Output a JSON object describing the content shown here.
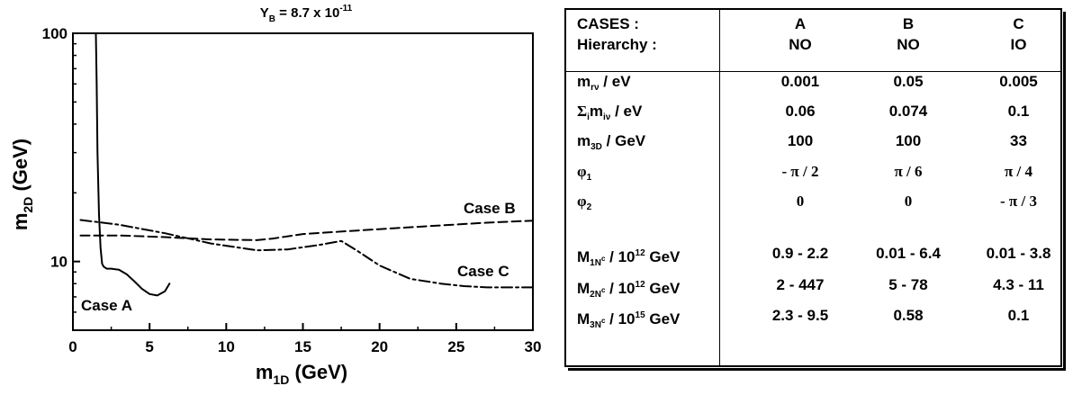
{
  "chart_data": {
    "type": "line",
    "title": "Y_B = 8.7 x 10^-11",
    "title_parts": {
      "main": "Y",
      "sub": "B",
      "mid": " = 8.7 x 10",
      "sup": "-11"
    },
    "xlabel": "m_1D (GeV)",
    "xlabel_parts": {
      "main": "m",
      "sub": "1D",
      "unit": " (GeV)"
    },
    "ylabel": "m_2D (GeV)",
    "ylabel_parts": {
      "main": "m",
      "sub": "2D",
      "unit": " (GeV)"
    },
    "xlim": [
      0,
      30
    ],
    "ylim": [
      5,
      100
    ],
    "yscale": "log",
    "x_ticks": [
      "0",
      "5",
      "10",
      "15",
      "20",
      "25",
      "30"
    ],
    "y_ticks": [
      "10",
      "100"
    ],
    "grid": false,
    "series": [
      {
        "name": "Case A",
        "style": "solid",
        "x": [
          1.5,
          1.55,
          1.6,
          1.7,
          1.8,
          1.9,
          2.0,
          2.2,
          2.5,
          3.0,
          3.5,
          4.0,
          4.5,
          5.0,
          5.5,
          6.0,
          6.3
        ],
        "y": [
          100,
          60,
          30,
          16,
          11.5,
          9.8,
          9.5,
          9.3,
          9.3,
          9.2,
          8.8,
          8.2,
          7.6,
          7.2,
          7.1,
          7.4,
          8.0
        ]
      },
      {
        "name": "Case B",
        "style": "dashed",
        "x": [
          0.5,
          3,
          6,
          9,
          12,
          13,
          15,
          18,
          21,
          24,
          27,
          30
        ],
        "y": [
          13.0,
          13.0,
          12.8,
          12.5,
          12.4,
          12.6,
          13.2,
          13.6,
          14.0,
          14.4,
          14.8,
          15.1
        ]
      },
      {
        "name": "Case C",
        "style": "dash-dot",
        "x": [
          0.5,
          3,
          6,
          9,
          12,
          14,
          16,
          17.5,
          18.5,
          20,
          22,
          24,
          25.5,
          27,
          30
        ],
        "y": [
          15.2,
          14.5,
          13.3,
          12.0,
          11.2,
          11.3,
          11.8,
          12.3,
          11.2,
          9.6,
          8.4,
          8.0,
          7.8,
          7.7,
          7.7
        ]
      }
    ],
    "annotations": [
      "Case A",
      "Case B",
      "Case C"
    ]
  },
  "table": {
    "header": {
      "label_row1": "CASES :",
      "label_row2": "Hierarchy :",
      "cases": [
        "A",
        "B",
        "C"
      ],
      "hierarchy": [
        "NO",
        "NO",
        "IO"
      ]
    },
    "rows": [
      {
        "label_main": "m",
        "label_sub": "rν",
        "label_tail": " / eV",
        "values": [
          "0.001",
          "0.05",
          "0.005"
        ]
      },
      {
        "label_pre": "Σ",
        "label_pre_sub": "i",
        "label_main": "m",
        "label_sub": "iν",
        "label_tail": " / eV",
        "values": [
          "0.06",
          "0.074",
          "0.1"
        ]
      },
      {
        "label_main": "m",
        "label_sub": "3D",
        "label_tail": " / GeV",
        "values": [
          "100",
          "100",
          "33"
        ]
      },
      {
        "label_main": "φ",
        "label_sub": "1",
        "label_tail": "",
        "values": [
          "- π / 2",
          "π / 6",
          "π / 4"
        ]
      },
      {
        "label_main": "φ",
        "label_sub": "2",
        "label_tail": "",
        "values": [
          "0",
          "0",
          "- π / 3"
        ]
      },
      {
        "label_main": "M",
        "label_sub": "1N",
        "label_subsup": "c",
        "label_tail": " / 10",
        "label_sup": "12",
        "label_unit": " GeV",
        "values": [
          "0.9 - 2.2",
          "0.01 - 6.4",
          "0.01 - 3.8"
        ]
      },
      {
        "label_main": "M",
        "label_sub": "2N",
        "label_subsup": "c",
        "label_tail": " / 10",
        "label_sup": "12",
        "label_unit": " GeV",
        "values": [
          "2 - 447",
          "5 - 78",
          "4.3 - 11"
        ]
      },
      {
        "label_main": "M",
        "label_sub": "3N",
        "label_subsup": "c",
        "label_tail": " / 10",
        "label_sup": "15",
        "label_unit": " GeV",
        "values": [
          "2.3 - 9.5",
          "0.58",
          "0.1"
        ]
      }
    ]
  }
}
